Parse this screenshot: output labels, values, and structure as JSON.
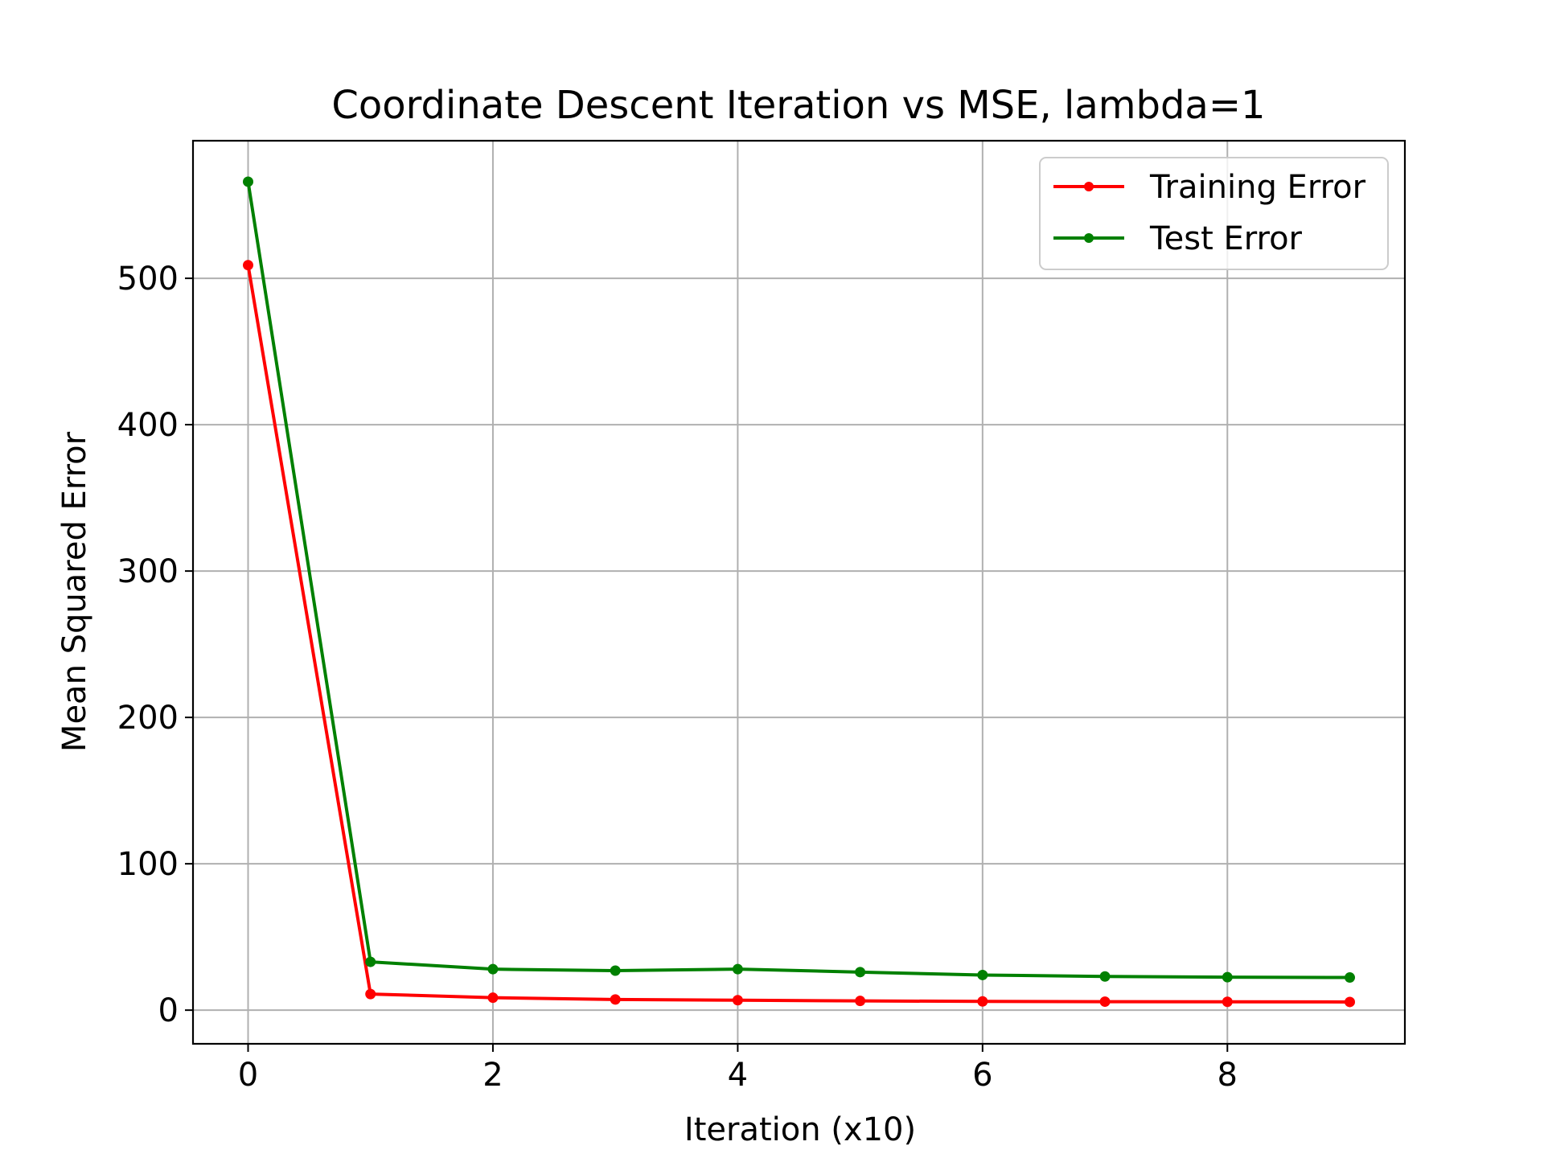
{
  "chart_data": {
    "type": "line",
    "title": "Coordinate Descent Iteration vs MSE, lambda=1",
    "xlabel": "Iteration (x10)",
    "ylabel": "Mean Squared Error",
    "xlim": [
      -0.45,
      9.45
    ],
    "ylim": [
      -23,
      594
    ],
    "xticks": [
      "0",
      "2",
      "4",
      "6",
      "8"
    ],
    "xtick_values": [
      0,
      2,
      4,
      6,
      8
    ],
    "yticks": [
      "0",
      "100",
      "200",
      "300",
      "400",
      "500"
    ],
    "ytick_values": [
      0,
      100,
      200,
      300,
      400,
      500
    ],
    "grid": true,
    "legend_position": "top-right",
    "x": [
      0,
      1,
      2,
      3,
      4,
      5,
      6,
      7,
      8,
      9
    ],
    "series": [
      {
        "name": "Training Error",
        "color": "#ff0000",
        "values": [
          509,
          11,
          8.5,
          7.3,
          6.8,
          6.3,
          6.0,
          5.8,
          5.7,
          5.6
        ]
      },
      {
        "name": "Test Error",
        "color": "#008000",
        "values": [
          566,
          33,
          28,
          27,
          28,
          26,
          24,
          23,
          22.5,
          22.3
        ]
      }
    ]
  }
}
